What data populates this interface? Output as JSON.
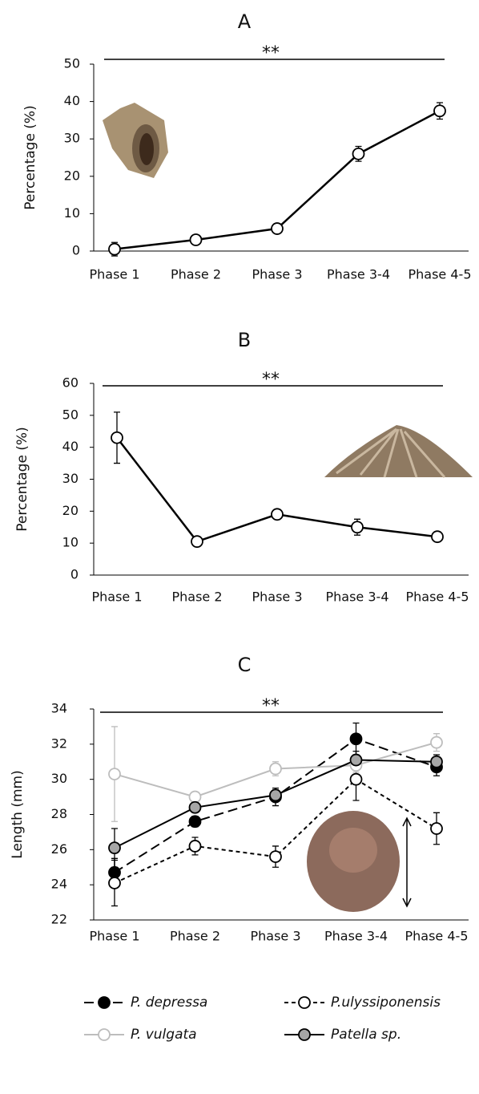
{
  "chart_data": [
    {
      "type": "line",
      "title": "A",
      "y_label": "Percentage (%)",
      "annotation": "**",
      "categories": [
        "Phase 1",
        "Phase 2",
        "Phase 3",
        "Phase 3-4",
        "Phase 4-5"
      ],
      "values": [
        0.5,
        3,
        6,
        26,
        37.5
      ],
      "errors": [
        1.8,
        0.5,
        0.6,
        2,
        2.2
      ],
      "color": "#000000",
      "marker_fill": "#ffffff",
      "ylim": [
        0,
        50
      ],
      "yticks": [
        0,
        10,
        20,
        30,
        40,
        50
      ]
    },
    {
      "type": "line",
      "title": "B",
      "y_label": "Percentage (%)",
      "annotation": "**",
      "categories": [
        "Phase 1",
        "Phase 2",
        "Phase 3",
        "Phase 3-4",
        "Phase 4-5"
      ],
      "values": [
        43,
        10.5,
        19,
        15,
        12
      ],
      "errors": [
        8,
        0.5,
        1,
        2.5,
        1
      ],
      "color": "#000000",
      "marker_fill": "#ffffff",
      "ylim": [
        0,
        60
      ],
      "yticks": [
        0,
        10,
        20,
        30,
        40,
        50,
        60
      ]
    },
    {
      "type": "line",
      "title": "C",
      "y_label": "Length (mm)",
      "annotation": "**",
      "categories": [
        "Phase 1",
        "Phase 2",
        "Phase 3",
        "Phase 3-4",
        "Phase 4-5"
      ],
      "series": [
        {
          "name": "P. depressa",
          "color": "#000000",
          "marker_fill": "#000000",
          "dash": "long",
          "values": [
            24.7,
            27.6,
            29.0,
            32.3,
            30.7
          ],
          "errors": [
            0.8,
            0.3,
            0.5,
            0.9,
            0.5
          ]
        },
        {
          "name": "P.ulyssiponensis",
          "color": "#000000",
          "marker_fill": "#ffffff",
          "dash": "short",
          "values": [
            24.1,
            26.2,
            25.6,
            30.0,
            27.2
          ],
          "errors": [
            1.3,
            0.5,
            0.6,
            1.2,
            0.9
          ]
        },
        {
          "name": "P. vulgata",
          "color": "#bdbdbd",
          "marker_fill": "#ffffff",
          "dash": "solid",
          "values": [
            30.3,
            29.0,
            30.6,
            30.8,
            32.1
          ],
          "errors": [
            2.7,
            0.2,
            0.4,
            0.4,
            0.5
          ]
        },
        {
          "name": "Patella sp.",
          "color": "#000000",
          "marker_fill": "#a6a6a6",
          "dash": "solid",
          "values": [
            26.1,
            28.4,
            29.1,
            31.1,
            31.0
          ],
          "errors": [
            1.1,
            0.2,
            0.3,
            0.5,
            0.4
          ]
        }
      ],
      "ylim": [
        22,
        34
      ],
      "yticks": [
        22,
        24,
        26,
        28,
        30,
        32,
        34
      ]
    }
  ]
}
